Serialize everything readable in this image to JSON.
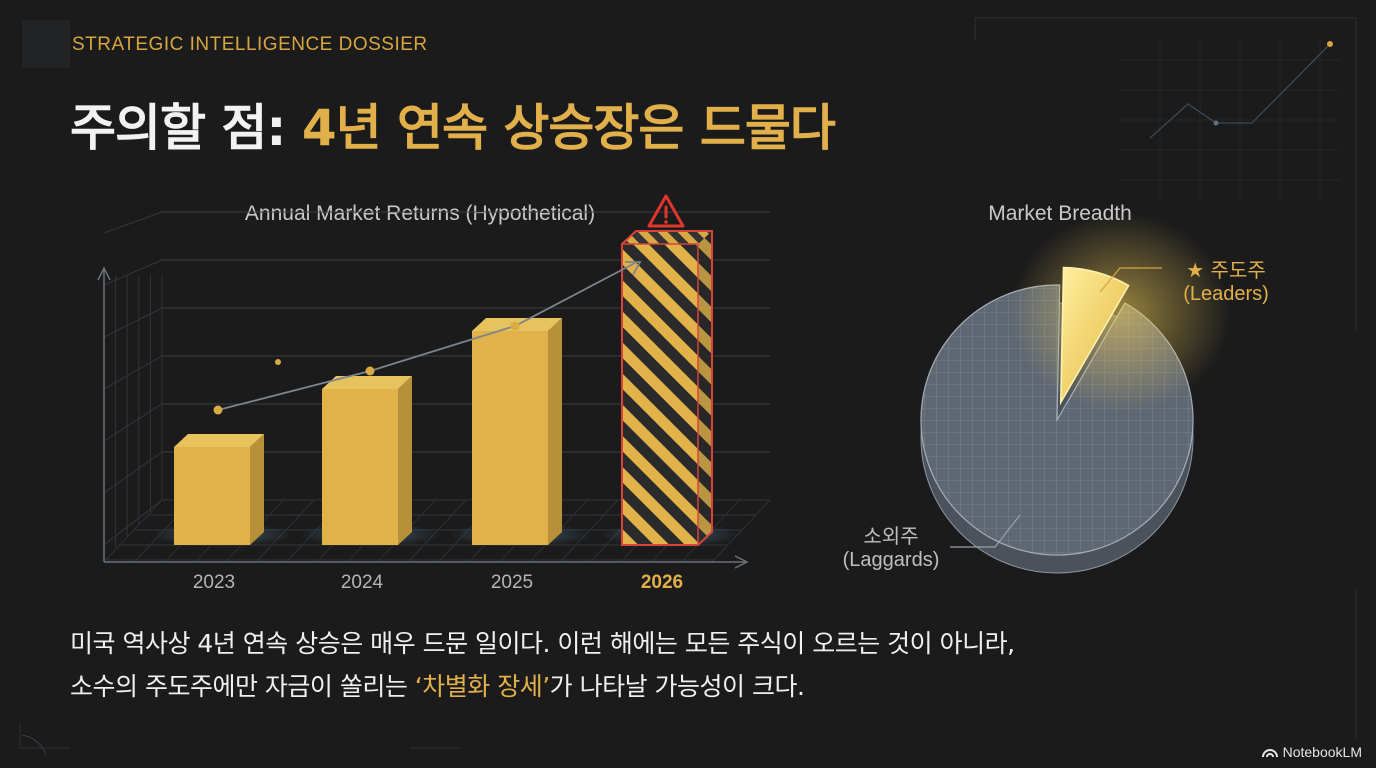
{
  "header": {
    "kicker": "STRATEGIC INTELLIGENCE DOSSIER",
    "title_white": "주의할 점: ",
    "title_gold": "4년 연속 상승장은 드물다"
  },
  "chart_data": [
    {
      "type": "bar",
      "title": "Annual Market Returns (Hypothetical)",
      "categories": [
        "2023",
        "2024",
        "2025",
        "2026"
      ],
      "values": [
        2,
        3,
        4,
        5.5
      ],
      "highlight_category": "2026",
      "highlight_style": "hazard-striped bar with warning icon",
      "trend_arrow": true,
      "grid": true,
      "colors": {
        "bar": "#e1b24a",
        "highlight": "#e1b24a",
        "hazard_stripe": "#2a2a2a",
        "highlight_border": "#d9433a",
        "warning": "#e0352b"
      }
    },
    {
      "type": "pie",
      "title": "Market Breadth",
      "slices": [
        {
          "label": "주도주",
          "sublabel": "(Leaders)",
          "value": 0.08,
          "color": "#f1c53f"
        },
        {
          "label": "소외주",
          "sublabel": "(Laggards)",
          "value": 0.92,
          "color": "#5f6772"
        }
      ]
    }
  ],
  "body": {
    "line1": "미국 역사상 4년 연속 상승은 매우 드문 일이다. 이런 해에는 모든 주식이 오르는 것이 아니라,",
    "line2_pre": "소수의 주도주에만 자금이 쏠리는 ",
    "line2_hl": "‘차별화 장세’",
    "line2_post": "가 나타날 가능성이 크다."
  },
  "brand": {
    "name": "NotebookLM"
  },
  "icons": {
    "warning": "warning-triangle-icon",
    "star": "star-icon",
    "brand": "notebooklm-logo-icon"
  }
}
